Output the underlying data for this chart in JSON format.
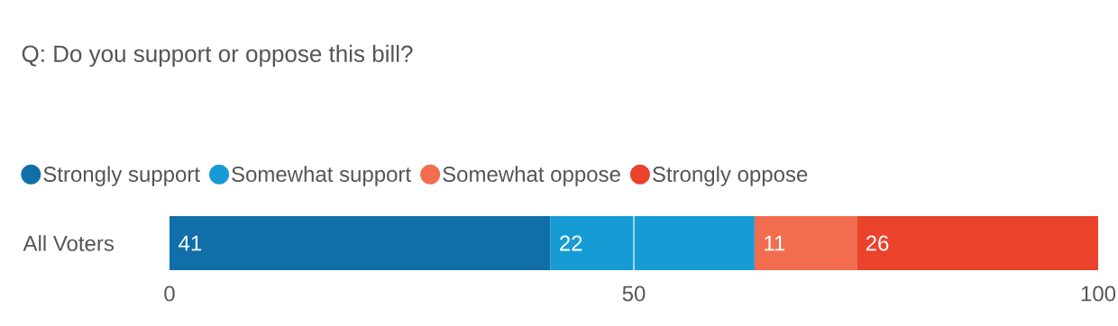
{
  "chart_data": {
    "type": "bar",
    "orientation": "horizontal",
    "stacked": true,
    "title": "Q: Do you support or oppose this bill?",
    "categories": [
      "All Voters"
    ],
    "series": [
      {
        "name": "Strongly support",
        "color": "#106fa9",
        "values": [
          41
        ]
      },
      {
        "name": "Somewhat support",
        "color": "#169bd5",
        "values": [
          22
        ]
      },
      {
        "name": "Somewhat oppose",
        "color": "#f26c4f",
        "values": [
          11
        ]
      },
      {
        "name": "Strongly oppose",
        "color": "#e9432b",
        "values": [
          26
        ]
      }
    ],
    "xlim": [
      0,
      100
    ],
    "xticks": [
      0,
      50,
      100
    ],
    "ref_lines": [
      {
        "axis": "x",
        "value": 50,
        "color": "#ffffff"
      }
    ],
    "legend": "top left",
    "data_labels": true
  }
}
